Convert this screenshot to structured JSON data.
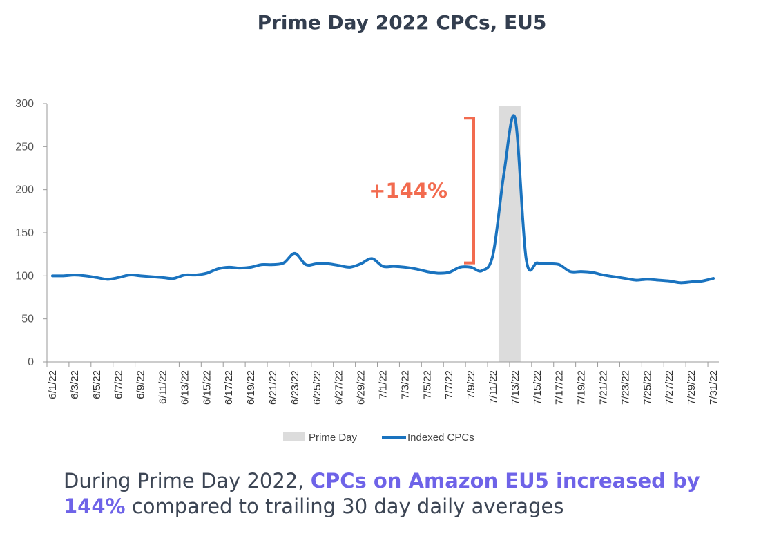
{
  "chart_data": {
    "type": "line",
    "title": "Prime Day 2022 CPCs, EU5",
    "x": [
      "6/1/22",
      "6/2/22",
      "6/3/22",
      "6/4/22",
      "6/5/22",
      "6/6/22",
      "6/7/22",
      "6/8/22",
      "6/9/22",
      "6/10/22",
      "6/11/22",
      "6/12/22",
      "6/13/22",
      "6/14/22",
      "6/15/22",
      "6/16/22",
      "6/17/22",
      "6/18/22",
      "6/19/22",
      "6/20/22",
      "6/21/22",
      "6/22/22",
      "6/23/22",
      "6/24/22",
      "6/25/22",
      "6/26/22",
      "6/27/22",
      "6/28/22",
      "6/29/22",
      "6/30/22",
      "7/1/22",
      "7/2/22",
      "7/3/22",
      "7/4/22",
      "7/5/22",
      "7/6/22",
      "7/7/22",
      "7/8/22",
      "7/9/22",
      "7/10/22",
      "7/11/22",
      "7/12/22",
      "7/13/22",
      "7/14/22",
      "7/15/22",
      "7/16/22",
      "7/17/22",
      "7/18/22",
      "7/19/22",
      "7/20/22",
      "7/21/22",
      "7/22/22",
      "7/23/22",
      "7/24/22",
      "7/25/22",
      "7/26/22",
      "7/27/22",
      "7/28/22",
      "7/29/22",
      "7/30/22",
      "7/31/22"
    ],
    "x_tick_labels": [
      "6/1/22",
      "6/3/22",
      "6/5/22",
      "6/7/22",
      "6/9/22",
      "6/11/22",
      "6/13/22",
      "6/15/22",
      "6/17/22",
      "6/19/22",
      "6/21/22",
      "6/23/22",
      "6/25/22",
      "6/27/22",
      "6/29/22",
      "7/1/22",
      "7/3/22",
      "7/5/22",
      "7/7/22",
      "7/9/22",
      "7/11/22",
      "7/13/22",
      "7/15/22",
      "7/17/22",
      "7/19/22",
      "7/21/22",
      "7/23/22",
      "7/25/22",
      "7/27/22",
      "7/29/22",
      "7/31/22"
    ],
    "series": [
      {
        "name": "Indexed CPCs",
        "color": "#1a73bf",
        "values": [
          100,
          100,
          101,
          100,
          98,
          96,
          98,
          101,
          100,
          99,
          98,
          97,
          101,
          101,
          103,
          108,
          110,
          109,
          110,
          113,
          113,
          115,
          126,
          113,
          114,
          114,
          112,
          110,
          114,
          120,
          111,
          111,
          110,
          108,
          105,
          103,
          104,
          110,
          110,
          106,
          125,
          220,
          283,
          120,
          115,
          114,
          113,
          105,
          105,
          104,
          101,
          99,
          97,
          95,
          96,
          95,
          94,
          92,
          93,
          94,
          97
        ]
      }
    ],
    "highlight": {
      "name": "Prime Day",
      "from": "7/12/22",
      "to": "7/13/22",
      "color": "#dcdcdc"
    },
    "annotation": {
      "text": "+144%",
      "color": "#f26b4f",
      "from_value": 115,
      "to_value": 283
    },
    "y_ticks": [
      0,
      50,
      100,
      150,
      200,
      250,
      300
    ],
    "ylim": [
      0,
      300
    ],
    "grid": false,
    "legend_position": "bottom",
    "legend": [
      {
        "name": "Prime Day",
        "kind": "band",
        "color": "#dcdcdc"
      },
      {
        "name": "Indexed CPCs",
        "kind": "line",
        "color": "#1a73bf"
      }
    ]
  },
  "caption": {
    "part1": "During Prime Day 2022, ",
    "highlight": "CPCs on Amazon EU5 increased by 144%",
    "part2": " compared to trailing 30 day daily averages"
  }
}
